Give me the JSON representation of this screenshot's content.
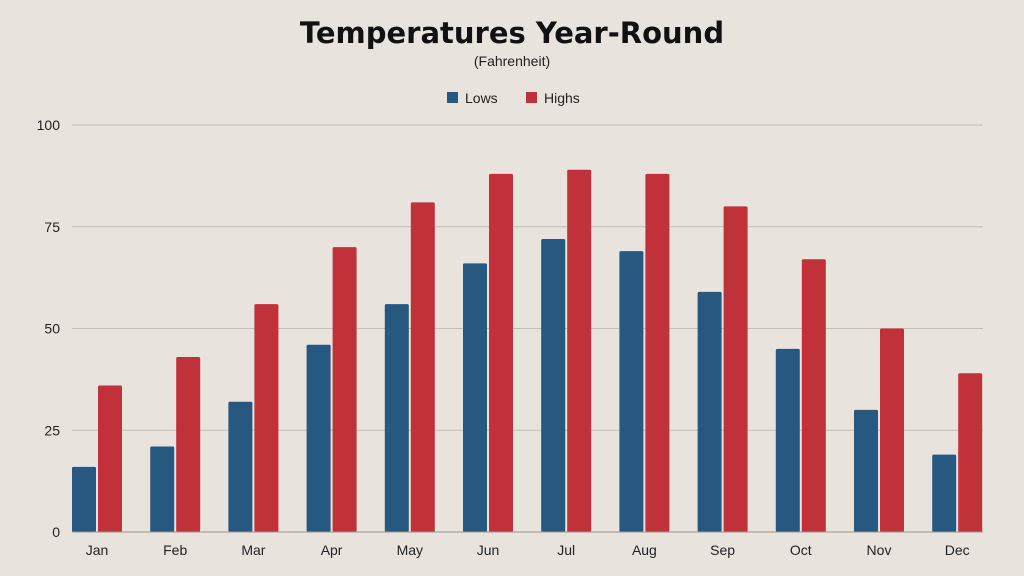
{
  "chart_data": {
    "type": "bar",
    "title": "Temperatures Year-Round",
    "subtitle": "(Fahrenheit)",
    "xlabel": "",
    "ylabel": "",
    "categories": [
      "Jan",
      "Feb",
      "Mar",
      "Apr",
      "May",
      "Jun",
      "Jul",
      "Aug",
      "Sep",
      "Oct",
      "Nov",
      "Dec"
    ],
    "series": [
      {
        "name": "Lows",
        "color": "#275880",
        "values": [
          16,
          21,
          32,
          46,
          56,
          66,
          72,
          69,
          59,
          45,
          30,
          19
        ]
      },
      {
        "name": "Highs",
        "color": "#c0313a",
        "values": [
          36,
          43,
          56,
          70,
          81,
          88,
          89,
          88,
          80,
          67,
          50,
          39
        ]
      }
    ],
    "ylim": [
      0,
      100
    ],
    "yticks": [
      0,
      25,
      50,
      75,
      100
    ],
    "grid": true,
    "legend_position": "top-center",
    "background": "#e8e3dd"
  }
}
